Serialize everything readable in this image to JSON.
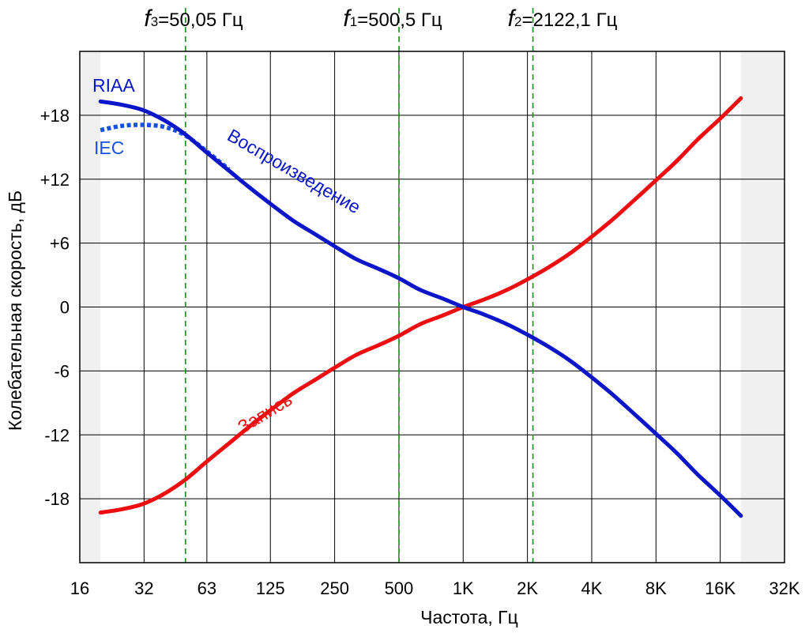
{
  "colors": {
    "playback": "#0a16c8",
    "iec": "#1652e0",
    "record": "#ee0c10",
    "marker": "#1a8a1a",
    "grid": "#000000",
    "shade": "#f0f0f0"
  },
  "chart_data": {
    "type": "line",
    "x_scale": "log2",
    "xlabel": "Частота, Гц",
    "ylabel": "Колебательная скорость, дБ",
    "xlim": [
      16,
      32000
    ],
    "ylim": [
      -24,
      24
    ],
    "grid": true,
    "x_ticks": [
      {
        "value": 16,
        "label": "16"
      },
      {
        "value": 32,
        "label": "32"
      },
      {
        "value": 63,
        "label": "63"
      },
      {
        "value": 125,
        "label": "125"
      },
      {
        "value": 250,
        "label": "250"
      },
      {
        "value": 500,
        "label": "500"
      },
      {
        "value": 1000,
        "label": "1K"
      },
      {
        "value": 2000,
        "label": "2K"
      },
      {
        "value": 4000,
        "label": "4K"
      },
      {
        "value": 8000,
        "label": "8K"
      },
      {
        "value": 16000,
        "label": "16K"
      },
      {
        "value": 32000,
        "label": "32K"
      }
    ],
    "y_ticks": [
      {
        "value": 18,
        "label": "+18"
      },
      {
        "value": 12,
        "label": "+12"
      },
      {
        "value": 6,
        "label": "+6"
      },
      {
        "value": 0,
        "label": "0"
      },
      {
        "value": -6,
        "label": "-6"
      },
      {
        "value": -12,
        "label": "-12"
      },
      {
        "value": -18,
        "label": "-18"
      }
    ],
    "shaded_ranges": [
      [
        16,
        20
      ],
      [
        20000,
        32000
      ]
    ],
    "markers": [
      {
        "value": 50.05,
        "symbol": "f",
        "index": "3",
        "text": "=50,05 Гц"
      },
      {
        "value": 500.5,
        "symbol": "f",
        "index": "1",
        "text": "=500,5 Гц"
      },
      {
        "value": 2122.1,
        "symbol": "f",
        "index": "2",
        "text": "=2122,1 Гц"
      }
    ],
    "series": [
      {
        "key": "playback",
        "name": "Воспроизведение",
        "label": "RIAA",
        "x": [
          20,
          25,
          31.5,
          40,
          50,
          63,
          80,
          100,
          125,
          160,
          200,
          250,
          315,
          400,
          500,
          630,
          800,
          1000,
          1250,
          1600,
          2000,
          2500,
          3150,
          4000,
          5000,
          6300,
          8000,
          10000,
          12500,
          16000,
          20000
        ],
        "y": [
          19.3,
          19.0,
          18.5,
          17.5,
          16.2,
          14.5,
          12.8,
          11.2,
          9.7,
          8.1,
          6.9,
          5.7,
          4.5,
          3.6,
          2.7,
          1.6,
          0.8,
          0.0,
          -0.7,
          -1.6,
          -2.6,
          -3.7,
          -5.0,
          -6.6,
          -8.2,
          -10.0,
          -11.9,
          -13.7,
          -15.7,
          -17.7,
          -19.6
        ]
      },
      {
        "key": "iec",
        "name": "",
        "label": "IEC",
        "x": [
          20,
          25,
          31.5,
          40,
          50,
          63,
          80
        ],
        "y": [
          16.6,
          17.0,
          17.1,
          16.9,
          16.1,
          14.6,
          12.9
        ]
      },
      {
        "key": "record",
        "name": "Запись",
        "label": "Запись",
        "x": [
          20,
          25,
          31.5,
          40,
          50,
          63,
          80,
          100,
          125,
          160,
          200,
          250,
          315,
          400,
          500,
          630,
          800,
          1000,
          1250,
          1600,
          2000,
          2500,
          3150,
          4000,
          5000,
          6300,
          8000,
          10000,
          12500,
          16000,
          20000
        ],
        "y": [
          -19.3,
          -19.0,
          -18.5,
          -17.5,
          -16.2,
          -14.5,
          -12.8,
          -11.2,
          -9.7,
          -8.1,
          -6.9,
          -5.7,
          -4.5,
          -3.6,
          -2.7,
          -1.6,
          -0.8,
          0.0,
          0.7,
          1.6,
          2.6,
          3.7,
          5.0,
          6.6,
          8.2,
          10.0,
          11.9,
          13.7,
          15.7,
          17.7,
          19.6
        ]
      }
    ]
  }
}
